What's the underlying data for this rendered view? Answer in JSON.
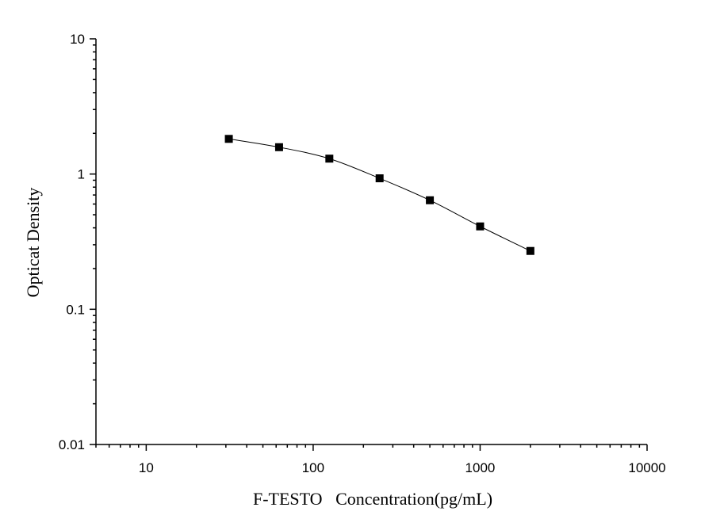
{
  "chart_data": {
    "type": "scatter",
    "xlabel": "F-TESTO   Concentration(pg/mL)",
    "ylabel": "Opticat Density",
    "x_scale": "log",
    "y_scale": "log",
    "xlim": [
      5,
      10000
    ],
    "ylim": [
      0.01,
      10
    ],
    "x_ticks": [
      "10",
      "100",
      "1000",
      "10000"
    ],
    "y_ticks": [
      "0.01",
      "0.1",
      "1",
      "10"
    ],
    "grid": false,
    "series": [
      {
        "x": [
          31.25,
          62.5,
          125,
          250,
          500,
          1000,
          2000
        ],
        "y": [
          1.82,
          1.58,
          1.3,
          0.93,
          0.64,
          0.41,
          0.27
        ],
        "marker": "square",
        "color": "#000000",
        "fit_curve": true
      }
    ]
  }
}
